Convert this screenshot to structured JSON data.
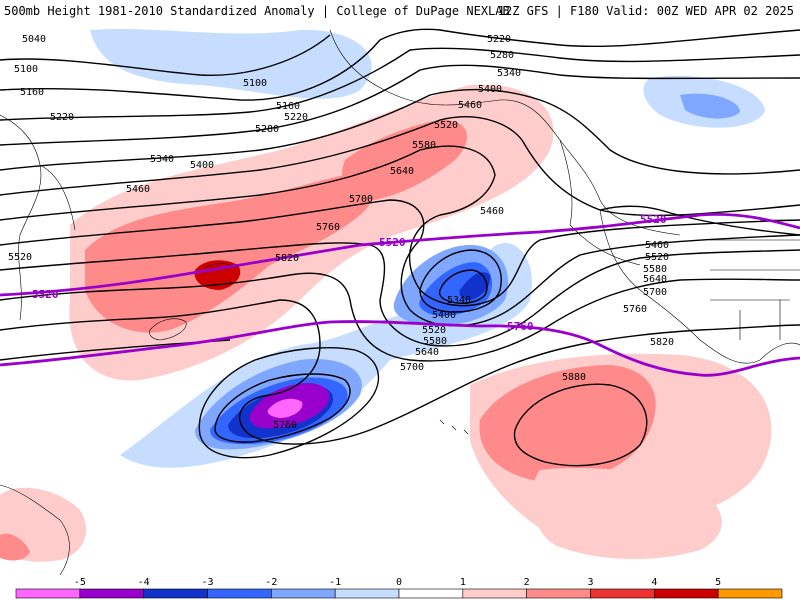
{
  "header": {
    "left": "500mb Height 1981-2010 Standardized Anomaly | College of DuPage NEXLAB",
    "right": "12Z GFS | F180 Valid: 00Z WED APR 02 2025"
  },
  "contour_labels": [
    "5040",
    "5100",
    "5160",
    "5220",
    "5280",
    "5340",
    "5400",
    "5460",
    "5520",
    "5580",
    "5640",
    "5700",
    "5760",
    "5820",
    "5880"
  ],
  "purple_labels": [
    "5520",
    "5760"
  ],
  "colorbar": {
    "ticks": [
      "-5",
      "-4",
      "-3",
      "-2",
      "-1",
      "0",
      "1",
      "2",
      "3",
      "4",
      "5"
    ],
    "colors": [
      "#ff66ff",
      "#9900cc",
      "#1133cc",
      "#3366ff",
      "#7fa7ff",
      "#c6ddff",
      "#ffffff",
      "#ffcccc",
      "#ff8a8a",
      "#ee3333",
      "#cc0000",
      "#ff9900"
    ]
  }
}
